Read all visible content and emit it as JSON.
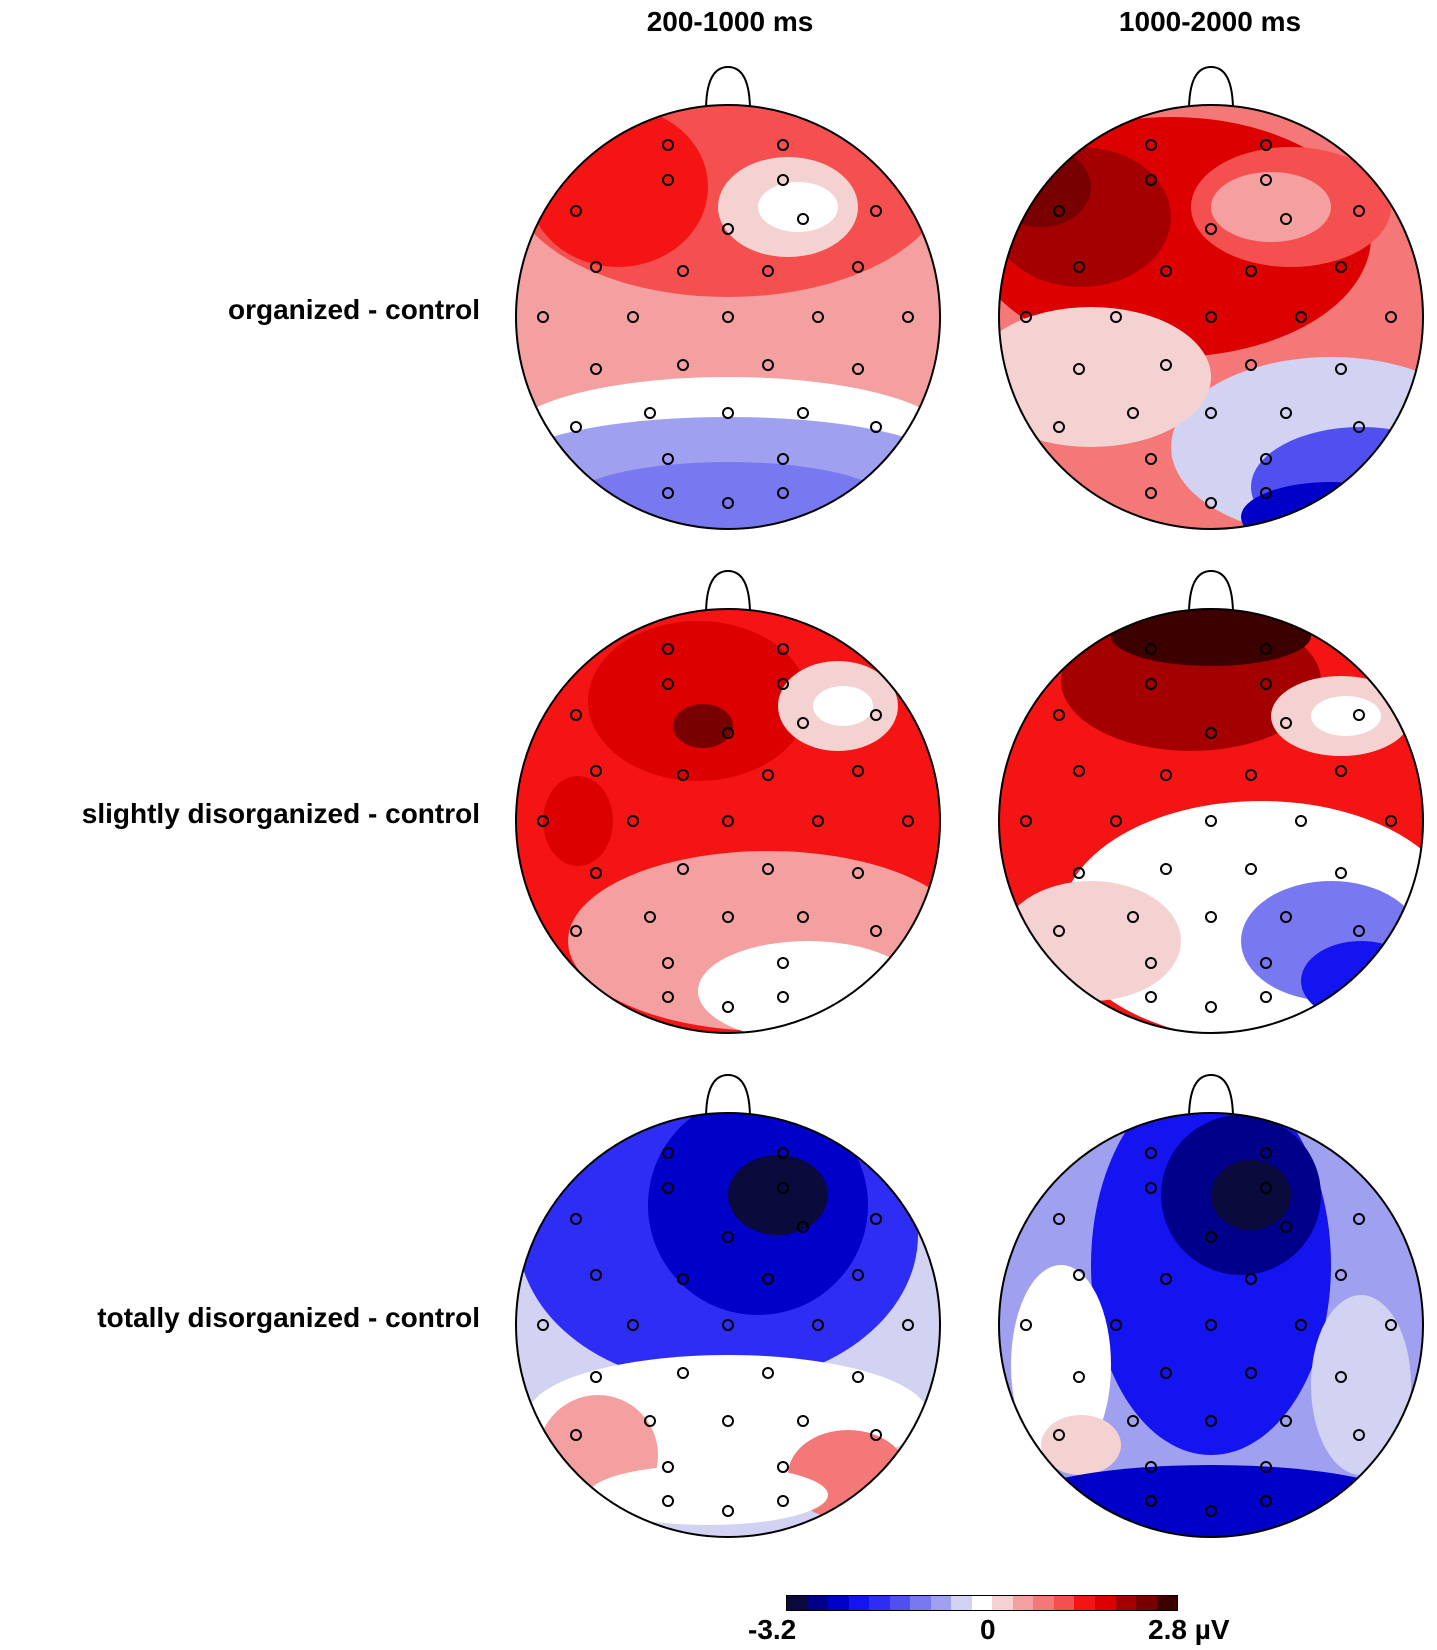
{
  "columns": [
    "200-1000 ms",
    "1000-2000 ms"
  ],
  "rows": [
    "organized - control",
    "slightly disorganized - control",
    "totally disorganized - control"
  ],
  "colorbar": {
    "min_label": "-3.2",
    "mid_label": "0",
    "max_label": "2.8 µV",
    "colors": [
      "#0a0a3c",
      "#00008b",
      "#0000c8",
      "#1414f0",
      "#2d2df5",
      "#5050f0",
      "#7878f0",
      "#a0a0f0",
      "#d2d2f2",
      "#ffffff",
      "#f5d2d2",
      "#f5a0a0",
      "#f57878",
      "#f55050",
      "#f51414",
      "#dc0000",
      "#a50000",
      "#780000",
      "#3c0000"
    ]
  },
  "maps": [
    {
      "row": 0,
      "col": 0,
      "name": "organized 200-1000"
    },
    {
      "row": 0,
      "col": 1,
      "name": "organized 1000-2000"
    },
    {
      "row": 1,
      "col": 0,
      "name": "slightly 200-1000"
    },
    {
      "row": 1,
      "col": 1,
      "name": "slightly 1000-2000"
    },
    {
      "row": 2,
      "col": 0,
      "name": "totally 200-1000"
    },
    {
      "row": 2,
      "col": 1,
      "name": "totally 1000-2000"
    }
  ]
}
